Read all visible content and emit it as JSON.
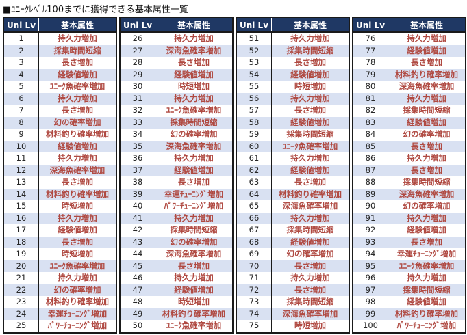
{
  "title": "■ﾕﾆｰｸﾚﾍﾞﾙ100までに獲得できる基本属性一覧",
  "table": {
    "column_headers": {
      "level": "Uni Lv",
      "attribute": "基本属性"
    },
    "groups": [
      {
        "name": "levels-1-25",
        "rows": [
          {
            "lv": 1,
            "attr": "持久力増加"
          },
          {
            "lv": 2,
            "attr": "採集時間短縮"
          },
          {
            "lv": 3,
            "attr": "長さ増加"
          },
          {
            "lv": 4,
            "attr": "経験値増加"
          },
          {
            "lv": 5,
            "attr": "ﾕﾆｰｸ魚確率増加"
          },
          {
            "lv": 6,
            "attr": "持久力増加"
          },
          {
            "lv": 7,
            "attr": "長さ増加"
          },
          {
            "lv": 8,
            "attr": "幻の確率増加"
          },
          {
            "lv": 9,
            "attr": "材料釣り確率増加"
          },
          {
            "lv": 10,
            "attr": "経験値増加"
          },
          {
            "lv": 11,
            "attr": "持久力増加"
          },
          {
            "lv": 12,
            "attr": "深海魚確率増加"
          },
          {
            "lv": 13,
            "attr": "長さ増加"
          },
          {
            "lv": 14,
            "attr": "材料釣り確率増加"
          },
          {
            "lv": 15,
            "attr": "時短増加"
          },
          {
            "lv": 16,
            "attr": "持久力増加"
          },
          {
            "lv": 17,
            "attr": "経験値増加"
          },
          {
            "lv": 18,
            "attr": "長さ増加"
          },
          {
            "lv": 19,
            "attr": "時短増加"
          },
          {
            "lv": 20,
            "attr": "ﾕﾆｰｸ魚確率増加"
          },
          {
            "lv": 21,
            "attr": "持久力増加"
          },
          {
            "lv": 22,
            "attr": "幻の確率増加"
          },
          {
            "lv": 23,
            "attr": "材料釣り確率増加"
          },
          {
            "lv": 24,
            "attr": "幸運ﾁｭｰﾆﾝｸﾞ増加"
          },
          {
            "lv": 25,
            "attr": "ﾊﾟﾜｰﾁｭｰﾆﾝｸﾞ増加"
          }
        ]
      },
      {
        "name": "levels-26-50",
        "rows": [
          {
            "lv": 26,
            "attr": "持久力増加"
          },
          {
            "lv": 27,
            "attr": "深海魚確率増加"
          },
          {
            "lv": 28,
            "attr": "長さ増加"
          },
          {
            "lv": 29,
            "attr": "経験値増加"
          },
          {
            "lv": 30,
            "attr": "時短増加"
          },
          {
            "lv": 31,
            "attr": "持久力増加"
          },
          {
            "lv": 32,
            "attr": "ﾕﾆｰｸ魚確率増加"
          },
          {
            "lv": 33,
            "attr": "採集時間短縮"
          },
          {
            "lv": 34,
            "attr": "幻の確率増加"
          },
          {
            "lv": 35,
            "attr": "深海魚確率増加"
          },
          {
            "lv": 36,
            "attr": "持久力増加"
          },
          {
            "lv": 37,
            "attr": "経験値増加"
          },
          {
            "lv": 38,
            "attr": "長さ増加"
          },
          {
            "lv": 39,
            "attr": "幸運ﾁｭｰﾆﾝｸﾞ増加"
          },
          {
            "lv": 40,
            "attr": "ﾊﾟﾜｰﾁｭｰﾆﾝｸﾞ増加"
          },
          {
            "lv": 41,
            "attr": "持久力増加"
          },
          {
            "lv": 42,
            "attr": "採集時間短縮"
          },
          {
            "lv": 43,
            "attr": "幻の確率増加"
          },
          {
            "lv": 44,
            "attr": "深海魚確率増加"
          },
          {
            "lv": 45,
            "attr": "長さ増加"
          },
          {
            "lv": 46,
            "attr": "持久力増加"
          },
          {
            "lv": 47,
            "attr": "経験値増加"
          },
          {
            "lv": 48,
            "attr": "時短増加"
          },
          {
            "lv": 49,
            "attr": "材料釣り確率増加"
          },
          {
            "lv": 50,
            "attr": "ﾕﾆｰｸ魚確率増加"
          }
        ]
      },
      {
        "name": "levels-51-75",
        "rows": [
          {
            "lv": 51,
            "attr": "持久力増加"
          },
          {
            "lv": 52,
            "attr": "採集時間短縮"
          },
          {
            "lv": 53,
            "attr": "長さ増加"
          },
          {
            "lv": 54,
            "attr": "経験値増加"
          },
          {
            "lv": 55,
            "attr": "時短増加"
          },
          {
            "lv": 56,
            "attr": "持久力増加"
          },
          {
            "lv": 57,
            "attr": "長さ増加"
          },
          {
            "lv": 58,
            "attr": "経験値増加"
          },
          {
            "lv": 59,
            "attr": "採集時間短縮"
          },
          {
            "lv": 60,
            "attr": "ﾕﾆｰｸ魚確率増加"
          },
          {
            "lv": 61,
            "attr": "持久力増加"
          },
          {
            "lv": 62,
            "attr": "経験値増加"
          },
          {
            "lv": 63,
            "attr": "長さ増加"
          },
          {
            "lv": 64,
            "attr": "材料釣り確率増加"
          },
          {
            "lv": 65,
            "attr": "深海魚確率増加"
          },
          {
            "lv": 66,
            "attr": "持久力増加"
          },
          {
            "lv": 67,
            "attr": "採集時間短縮"
          },
          {
            "lv": 68,
            "attr": "経験値増加"
          },
          {
            "lv": 69,
            "attr": "幻の確率増加"
          },
          {
            "lv": 70,
            "attr": "長さ増加"
          },
          {
            "lv": 71,
            "attr": "持久力増加"
          },
          {
            "lv": 72,
            "attr": "長さ増加"
          },
          {
            "lv": 73,
            "attr": "採集時間短縮"
          },
          {
            "lv": 74,
            "attr": "深海魚確率増加"
          },
          {
            "lv": 75,
            "attr": "時短増加"
          }
        ]
      },
      {
        "name": "levels-76-100",
        "rows": [
          {
            "lv": 76,
            "attr": "持久力増加"
          },
          {
            "lv": 77,
            "attr": "経験値増加"
          },
          {
            "lv": 78,
            "attr": "長さ増加"
          },
          {
            "lv": 79,
            "attr": "材料釣り確率増加"
          },
          {
            "lv": 80,
            "attr": "深海魚確率増加"
          },
          {
            "lv": 81,
            "attr": "持久力増加"
          },
          {
            "lv": 82,
            "attr": "採集時間短縮"
          },
          {
            "lv": 83,
            "attr": "経験値増加"
          },
          {
            "lv": 84,
            "attr": "幻の確率増加"
          },
          {
            "lv": 85,
            "attr": "長さ増加"
          },
          {
            "lv": 86,
            "attr": "持久力増加"
          },
          {
            "lv": 87,
            "attr": "長さ増加"
          },
          {
            "lv": 88,
            "attr": "採集時間短縮"
          },
          {
            "lv": 89,
            "attr": "深海魚確率増加"
          },
          {
            "lv": 90,
            "attr": "幻の確率増加"
          },
          {
            "lv": 91,
            "attr": "持久力増加"
          },
          {
            "lv": 92,
            "attr": "経験値増加"
          },
          {
            "lv": 93,
            "attr": "長さ増加"
          },
          {
            "lv": 94,
            "attr": "幸運ﾁｭｰﾆﾝｸﾞ増加"
          },
          {
            "lv": 95,
            "attr": "ﾕﾆｰｸ魚確率増加"
          },
          {
            "lv": 96,
            "attr": "持久力増加"
          },
          {
            "lv": 97,
            "attr": "採集時間短縮"
          },
          {
            "lv": 98,
            "attr": "経験値増加"
          },
          {
            "lv": 99,
            "attr": "材料釣り確率増加"
          },
          {
            "lv": 100,
            "attr": "ﾊﾟﾜｰﾁｭｰﾆﾝｸﾞ増加"
          }
        ]
      }
    ]
  },
  "colors": {
    "header_bg": "#1F3864",
    "header_text": "#FFFFFF",
    "row_bg": "#FFFFFF",
    "row_alt_bg": "#D9E1F2",
    "level_text": "#262626",
    "attribute_text": "#B04A42",
    "table_border": "#1A1A1A"
  }
}
